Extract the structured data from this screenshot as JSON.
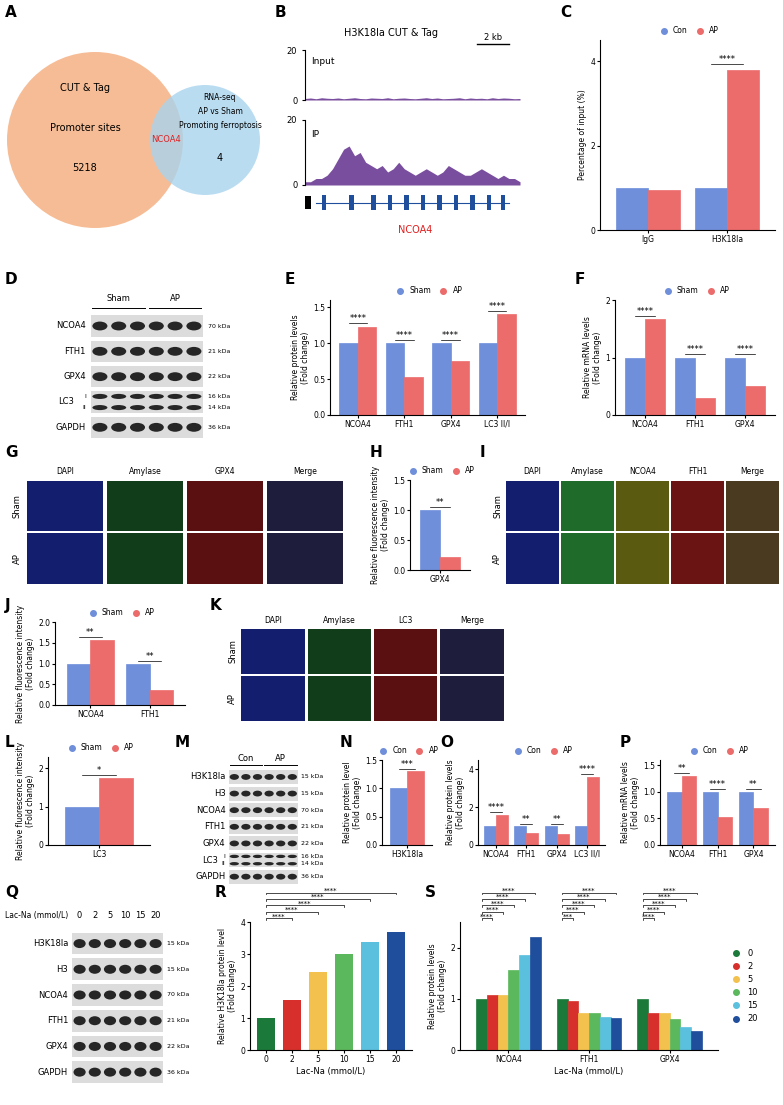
{
  "venn": {
    "label": "A",
    "left": {
      "lines": [
        "CUT & Tag",
        "Promoter sites"
      ],
      "count": 5218,
      "color": "#F5B58A"
    },
    "right": {
      "lines": [
        "RNA-seq",
        "AP vs Sham",
        "Promoting ferroptosis"
      ],
      "count": 4,
      "color": "#A9D4EE"
    },
    "overlap": "NCOA4",
    "overlap_color": "#E02020"
  },
  "track": {
    "label": "B",
    "title": "H3K18la CUT & Tag",
    "scale": "2 kb",
    "gene": "NCOA4",
    "gene_color": "#E02020",
    "color": "#7A4E9E",
    "ylim": [
      0,
      20
    ],
    "yticks": [
      0,
      20
    ],
    "tracks": [
      {
        "name": "Input",
        "values": [
          0.6,
          0.8,
          0.5,
          0.9,
          0.7,
          0.6,
          0.8,
          0.5,
          0.7,
          0.9,
          0.6,
          0.5,
          0.8,
          0.7,
          0.6,
          0.9,
          0.5,
          0.7,
          0.8,
          0.6,
          0.5,
          0.7,
          0.9,
          0.6,
          0.8,
          0.5,
          0.6,
          0.7,
          0.9,
          0.5,
          0.8,
          0.6,
          0.7,
          0.5,
          0.9,
          0.6,
          0.8,
          0.7,
          0.5,
          0.6
        ]
      },
      {
        "name": "IP",
        "values": [
          1,
          1,
          2,
          2,
          3,
          5,
          8,
          11,
          12,
          9,
          10,
          7,
          6,
          5,
          6,
          4,
          5,
          7,
          5,
          4,
          3,
          4,
          5,
          4,
          3,
          4,
          6,
          5,
          4,
          3,
          3,
          4,
          5,
          4,
          3,
          2,
          3,
          2,
          2,
          1
        ]
      }
    ]
  },
  "blots": [
    {
      "label": "D",
      "groups": [
        {
          "name": "Sham",
          "lanes": 3
        },
        {
          "name": "AP",
          "lanes": 3
        }
      ],
      "rows": [
        {
          "name": "NCOA4",
          "kda": [
            "70 kDa"
          ]
        },
        {
          "name": "FTH1",
          "kda": [
            "21 kDa"
          ]
        },
        {
          "name": "GPX4",
          "kda": [
            "22 kDa"
          ]
        },
        {
          "name": "LC3",
          "sub": [
            "I",
            "II"
          ],
          "kda": [
            "16 kDa",
            "14 kDa"
          ]
        },
        {
          "name": "GAPDH",
          "kda": [
            "36 kDa"
          ]
        }
      ]
    },
    {
      "label": "M",
      "groups": [
        {
          "name": "Con",
          "lanes": 3
        },
        {
          "name": "AP",
          "lanes": 3
        }
      ],
      "rows": [
        {
          "name": "H3K18la",
          "kda": [
            "15 kDa"
          ]
        },
        {
          "name": "H3",
          "kda": [
            "15 kDa"
          ]
        },
        {
          "name": "NCOA4",
          "kda": [
            "70 kDa"
          ]
        },
        {
          "name": "FTH1",
          "kda": [
            "21 kDa"
          ]
        },
        {
          "name": "GPX4",
          "kda": [
            "22 kDa"
          ]
        },
        {
          "name": "LC3",
          "sub": [
            "I",
            "II"
          ],
          "kda": [
            "16 kDa",
            "14 kDa"
          ]
        },
        {
          "name": "GAPDH",
          "kda": [
            "36 kDa"
          ]
        }
      ]
    },
    {
      "label": "Q",
      "header": "Lac-Na (mmol/L)",
      "groups": [
        {
          "name": "0",
          "lanes": 1
        },
        {
          "name": "2",
          "lanes": 1
        },
        {
          "name": "5",
          "lanes": 1
        },
        {
          "name": "10",
          "lanes": 1
        },
        {
          "name": "15",
          "lanes": 1
        },
        {
          "name": "20",
          "lanes": 1
        }
      ],
      "rows": [
        {
          "name": "H3K18la",
          "kda": [
            "15 kDa"
          ]
        },
        {
          "name": "H3",
          "kda": [
            "15 kDa"
          ]
        },
        {
          "name": "NCOA4",
          "kda": [
            "70 kDa"
          ]
        },
        {
          "name": "FTH1",
          "kda": [
            "21 kDa"
          ]
        },
        {
          "name": "GPX4",
          "kda": [
            "22 kDa"
          ]
        },
        {
          "name": "GAPDH",
          "kda": [
            "36 kDa"
          ]
        }
      ]
    }
  ],
  "images": [
    {
      "label": "G",
      "columns": [
        "DAPI",
        "Amylase",
        "GPX4",
        "Merge"
      ],
      "rows": [
        "Sham",
        "AP"
      ],
      "colors": [
        "#141e6e",
        "#123d1a",
        "#5a1010",
        "#1e1e3c"
      ]
    },
    {
      "label": "I",
      "columns": [
        "DAPI",
        "Amylase",
        "NCOA4",
        "FTH1",
        "Merge"
      ],
      "rows": [
        "Sham",
        "AP"
      ],
      "colors": [
        "#141e6e",
        "#1f6b2a",
        "#5a5a10",
        "#6b1414",
        "#4a3a20"
      ]
    },
    {
      "label": "K",
      "columns": [
        "DAPI",
        "Amylase",
        "LC3",
        "Merge"
      ],
      "rows": [
        "Sham",
        "AP"
      ],
      "colors": [
        "#141e6e",
        "#123d1a",
        "#5a1010",
        "#1e1e3c"
      ]
    }
  ],
  "chart_data": [
    {
      "label": "C",
      "type": "bar",
      "categories": [
        "IgG",
        "H3K18la"
      ],
      "series": [
        {
          "name": "Con",
          "color": "#6F8FDB",
          "values": [
            1.0,
            1.0
          ]
        },
        {
          "name": "AP",
          "color": "#EC6B6B",
          "values": [
            0.95,
            3.8
          ]
        }
      ],
      "ylabel": "Percentage of input (%)",
      "ylim": [
        0,
        4.5
      ],
      "yticks": [
        0,
        2,
        4
      ],
      "legend": "top",
      "significance": [
        null,
        "****"
      ]
    },
    {
      "label": "E",
      "type": "bar",
      "categories": [
        "NCOA4",
        "FTH1",
        "GPX4",
        "LC3 II/I"
      ],
      "series": [
        {
          "name": "Sham",
          "color": "#6F8FDB",
          "values": [
            1.0,
            1.0,
            1.0,
            1.0
          ]
        },
        {
          "name": "AP",
          "color": "#EC6B6B",
          "values": [
            1.23,
            0.53,
            0.75,
            1.4
          ]
        }
      ],
      "ylabel": "Relative protein levels\n(Fold change)",
      "ylim": [
        0,
        1.6
      ],
      "yticks": [
        {
          "value": 0,
          "label": "0.0"
        },
        0.5,
        {
          "value": 1,
          "label": "1.0"
        },
        1.5
      ],
      "legend": "top",
      "significance": [
        "****",
        "****",
        "****",
        "****"
      ]
    },
    {
      "label": "F",
      "type": "bar",
      "categories": [
        "NCOA4",
        "FTH1",
        "GPX4"
      ],
      "series": [
        {
          "name": "Sham",
          "color": "#6F8FDB",
          "values": [
            1.0,
            1.0,
            1.0
          ]
        },
        {
          "name": "AP",
          "color": "#EC6B6B",
          "values": [
            1.67,
            0.3,
            0.5
          ]
        }
      ],
      "ylabel": "Relative mRNA levels\n(Fold change)",
      "ylim": [
        0,
        2
      ],
      "yticks": [
        0,
        1,
        2
      ],
      "legend": "top",
      "significance": [
        "****",
        "****",
        "****"
      ]
    },
    {
      "label": "H",
      "type": "bar",
      "categories": [
        "GPX4"
      ],
      "series": [
        {
          "name": "Sham",
          "color": "#6F8FDB",
          "values": [
            1.0
          ]
        },
        {
          "name": "AP",
          "color": "#EC6B6B",
          "values": [
            0.22
          ]
        }
      ],
      "ylabel": "Relative fluorescence intensity\n(Fold change)",
      "ylim": [
        0,
        1.5
      ],
      "yticks": [
        {
          "value": 0,
          "label": "0.0"
        },
        0.5,
        {
          "value": 1,
          "label": "1.0"
        },
        1.5
      ],
      "legend": "top",
      "significance": [
        "**"
      ]
    },
    {
      "label": "J",
      "type": "bar",
      "categories": [
        "NCOA4",
        "FTH1"
      ],
      "series": [
        {
          "name": "Sham",
          "color": "#6F8FDB",
          "values": [
            1.0,
            1.0
          ]
        },
        {
          "name": "AP",
          "color": "#EC6B6B",
          "values": [
            1.57,
            0.37
          ]
        }
      ],
      "ylabel": "Relative fluorescence intensity\n(Fold change)",
      "ylim": [
        0,
        2.0
      ],
      "yticks": [
        {
          "value": 0,
          "label": "0.0"
        },
        0.5,
        {
          "value": 1,
          "label": "1.0"
        },
        1.5,
        {
          "value": 2,
          "label": "2.0"
        }
      ],
      "legend": "top",
      "significance": [
        "**",
        "**"
      ]
    },
    {
      "label": "L",
      "type": "bar",
      "categories": [
        "LC3"
      ],
      "series": [
        {
          "name": "Sham",
          "color": "#6F8FDB",
          "values": [
            1.0
          ]
        },
        {
          "name": "AP",
          "color": "#EC6B6B",
          "values": [
            1.75
          ]
        }
      ],
      "ylabel": "Relative fluorescence intensity\n(Fold change)",
      "ylim": [
        0,
        2.3
      ],
      "yticks": [
        0,
        1,
        2
      ],
      "legend": "top",
      "significance": [
        "*"
      ]
    },
    {
      "label": "N",
      "type": "bar",
      "categories": [
        "H3K18la"
      ],
      "series": [
        {
          "name": "Con",
          "color": "#6F8FDB",
          "values": [
            1.0
          ]
        },
        {
          "name": "AP",
          "color": "#EC6B6B",
          "values": [
            1.3
          ]
        }
      ],
      "ylabel": "Relative protein level\n(Fold change)",
      "ylim": [
        0,
        1.5
      ],
      "yticks": [
        {
          "value": 0,
          "label": "0.0"
        },
        0.5,
        {
          "value": 1,
          "label": "1.0"
        },
        1.5
      ],
      "legend": "top",
      "significance": [
        "***"
      ]
    },
    {
      "label": "O",
      "type": "bar",
      "categories": [
        "NCOA4",
        "FTH1",
        "GPX4",
        "LC3 II/I"
      ],
      "series": [
        {
          "name": "Con",
          "color": "#6F8FDB",
          "values": [
            1.0,
            1.0,
            1.0,
            1.0
          ]
        },
        {
          "name": "AP",
          "color": "#EC6B6B",
          "values": [
            1.6,
            0.62,
            0.6,
            3.6
          ]
        }
      ],
      "ylabel": "Relative protein levels\n(Fold change)",
      "ylim": [
        0,
        4.5
      ],
      "yticks": [
        0,
        2,
        4
      ],
      "legend": "top",
      "significance": [
        "****",
        "**",
        "**",
        "****"
      ]
    },
    {
      "label": "P",
      "type": "bar",
      "categories": [
        "NCOA4",
        "FTH1",
        "GPX4"
      ],
      "series": [
        {
          "name": "Con",
          "color": "#6F8FDB",
          "values": [
            1.0,
            1.0,
            1.0
          ]
        },
        {
          "name": "AP",
          "color": "#EC6B6B",
          "values": [
            1.3,
            0.52,
            0.7
          ]
        }
      ],
      "ylabel": "Relative mRNA levels\n(Fold change)",
      "ylim": [
        0,
        1.6
      ],
      "yticks": [
        {
          "value": 0,
          "label": "0.0"
        },
        0.5,
        {
          "value": 1,
          "label": "1.0"
        },
        1.5
      ],
      "legend": "top",
      "significance": [
        "**",
        "****",
        "**"
      ]
    },
    {
      "label": "R",
      "type": "bar",
      "categories": [
        "0",
        "2",
        "5",
        "10",
        "15",
        "20"
      ],
      "values": [
        1.0,
        1.55,
        2.45,
        3.0,
        3.38,
        3.7
      ],
      "colors": [
        "#1B7A3A",
        "#D7302C",
        "#F2C14E",
        "#5CB85C",
        "#5BC0DE",
        "#1F4E9C"
      ],
      "xlabel": "Lac-Na (mmol/L)",
      "ylabel": "Relative H3K18la protein level\n(Fold change)",
      "ylim": [
        0,
        4
      ],
      "yticks": [
        0,
        1,
        2,
        3,
        4
      ],
      "significance": [
        null,
        "****",
        "****",
        "****",
        "****",
        "****"
      ]
    },
    {
      "label": "S",
      "type": "bar",
      "categories": [
        "NCOA4",
        "FTH1",
        "GPX4"
      ],
      "series": [
        {
          "name": "0",
          "color": "#1B7A3A",
          "values": [
            1.0,
            1.0,
            1.0
          ]
        },
        {
          "name": "2",
          "color": "#D7302C",
          "values": [
            1.08,
            0.95,
            0.72
          ]
        },
        {
          "name": "5",
          "color": "#F2C14E",
          "values": [
            1.07,
            0.73,
            0.72
          ]
        },
        {
          "name": "10",
          "color": "#5CB85C",
          "values": [
            1.57,
            0.72,
            0.6
          ]
        },
        {
          "name": "15",
          "color": "#5BC0DE",
          "values": [
            1.85,
            0.65,
            0.45
          ]
        },
        {
          "name": "20",
          "color": "#1F4E9C",
          "values": [
            2.2,
            0.63,
            0.38
          ]
        }
      ],
      "xlabel": "Lac-Na (mmol/L)",
      "ylabel": "Relative protein levels\n(Fold change)",
      "ylim": [
        0,
        2.5
      ],
      "yticks": [
        0,
        1,
        2
      ],
      "legend": "right",
      "significance": [
        [
          "****",
          "****",
          "****",
          "****",
          "****"
        ],
        [
          "***",
          "****",
          "****",
          "****",
          "****"
        ],
        [
          "****",
          "****",
          "****",
          "****",
          "****"
        ]
      ]
    }
  ]
}
